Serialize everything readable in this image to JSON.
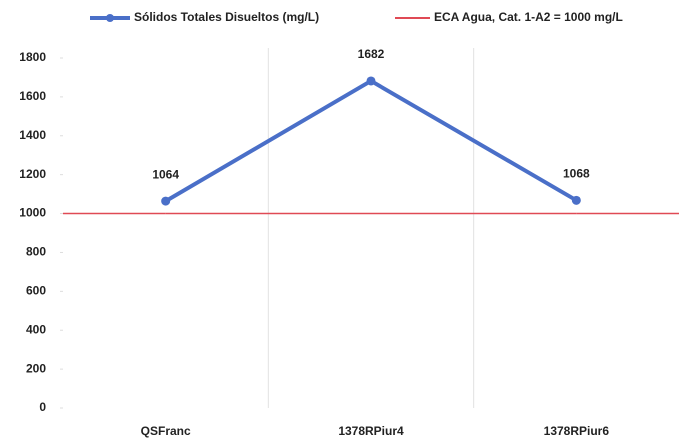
{
  "chart_data": {
    "type": "line",
    "categories": [
      "QSFranc",
      "1378RPiur4",
      "1378RPiur6"
    ],
    "series": [
      {
        "name": "Sólidos Totales Disueltos (mg/L)",
        "color": "#4a6fc8",
        "values": [
          1064,
          1682,
          1068
        ]
      },
      {
        "name": "ECA Agua, Cat. 1-A2 = 1000 mg/L",
        "color": "#e04a55",
        "values": [
          1000,
          1000,
          1000
        ]
      }
    ],
    "ylim": [
      0,
      1800
    ],
    "yticks": [
      0,
      200,
      400,
      600,
      800,
      1000,
      1200,
      1400,
      1600,
      1800
    ],
    "grid": true
  }
}
